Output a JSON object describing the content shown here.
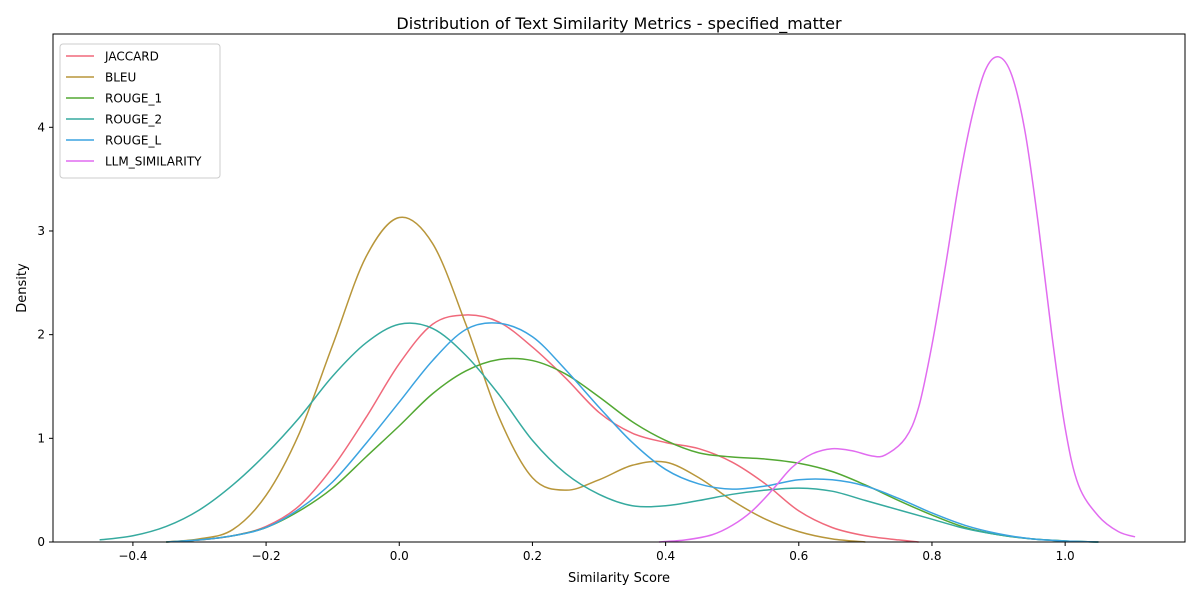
{
  "chart_data": {
    "type": "line",
    "title": "Distribution of Text Similarity Metrics - specified_matter",
    "xlabel": "Similarity Score",
    "ylabel": "Density",
    "xlim": [
      -0.52,
      1.18
    ],
    "ylim": [
      0,
      4.9
    ],
    "x_ticks": [
      -0.4,
      -0.2,
      0.0,
      0.2,
      0.4,
      0.6,
      0.8,
      1.0
    ],
    "x_tick_labels": [
      "−0.4",
      "−0.2",
      "0.0",
      "0.2",
      "0.4",
      "0.6",
      "0.8",
      "1.0"
    ],
    "y_ticks": [
      0,
      1,
      2,
      3,
      4
    ],
    "y_tick_labels": [
      "0",
      "1",
      "2",
      "3",
      "4"
    ],
    "grid": false,
    "legend_position": "top-left",
    "series": [
      {
        "name": "JACCARD",
        "color": "#f0697b",
        "points": [
          [
            -0.35,
            0.0
          ],
          [
            -0.3,
            0.02
          ],
          [
            -0.25,
            0.06
          ],
          [
            -0.2,
            0.15
          ],
          [
            -0.15,
            0.35
          ],
          [
            -0.1,
            0.72
          ],
          [
            -0.05,
            1.2
          ],
          [
            0.0,
            1.72
          ],
          [
            0.05,
            2.1
          ],
          [
            0.1,
            2.19
          ],
          [
            0.15,
            2.12
          ],
          [
            0.2,
            1.88
          ],
          [
            0.25,
            1.58
          ],
          [
            0.3,
            1.25
          ],
          [
            0.35,
            1.05
          ],
          [
            0.4,
            0.96
          ],
          [
            0.45,
            0.9
          ],
          [
            0.5,
            0.77
          ],
          [
            0.55,
            0.56
          ],
          [
            0.6,
            0.3
          ],
          [
            0.65,
            0.14
          ],
          [
            0.7,
            0.06
          ],
          [
            0.75,
            0.02
          ],
          [
            0.78,
            0.0
          ]
        ]
      },
      {
        "name": "BLEU",
        "color": "#b8963a",
        "points": [
          [
            -0.35,
            0.0
          ],
          [
            -0.3,
            0.03
          ],
          [
            -0.25,
            0.12
          ],
          [
            -0.2,
            0.45
          ],
          [
            -0.15,
            1.05
          ],
          [
            -0.1,
            1.9
          ],
          [
            -0.05,
            2.75
          ],
          [
            0.0,
            3.13
          ],
          [
            0.05,
            2.88
          ],
          [
            0.1,
            2.1
          ],
          [
            0.15,
            1.2
          ],
          [
            0.2,
            0.62
          ],
          [
            0.25,
            0.5
          ],
          [
            0.3,
            0.6
          ],
          [
            0.35,
            0.74
          ],
          [
            0.4,
            0.77
          ],
          [
            0.45,
            0.62
          ],
          [
            0.5,
            0.4
          ],
          [
            0.55,
            0.22
          ],
          [
            0.6,
            0.1
          ],
          [
            0.65,
            0.03
          ],
          [
            0.7,
            0.0
          ]
        ]
      },
      {
        "name": "ROUGE_1",
        "color": "#53a833",
        "points": [
          [
            -0.35,
            0.0
          ],
          [
            -0.3,
            0.02
          ],
          [
            -0.25,
            0.06
          ],
          [
            -0.2,
            0.14
          ],
          [
            -0.15,
            0.3
          ],
          [
            -0.1,
            0.52
          ],
          [
            -0.05,
            0.82
          ],
          [
            0.0,
            1.12
          ],
          [
            0.05,
            1.43
          ],
          [
            0.1,
            1.65
          ],
          [
            0.15,
            1.76
          ],
          [
            0.2,
            1.75
          ],
          [
            0.25,
            1.62
          ],
          [
            0.3,
            1.4
          ],
          [
            0.35,
            1.16
          ],
          [
            0.4,
            0.98
          ],
          [
            0.45,
            0.86
          ],
          [
            0.5,
            0.82
          ],
          [
            0.55,
            0.8
          ],
          [
            0.6,
            0.76
          ],
          [
            0.65,
            0.68
          ],
          [
            0.7,
            0.55
          ],
          [
            0.75,
            0.4
          ],
          [
            0.8,
            0.26
          ],
          [
            0.85,
            0.14
          ],
          [
            0.9,
            0.07
          ],
          [
            0.95,
            0.03
          ],
          [
            1.0,
            0.01
          ],
          [
            1.05,
            0.0
          ]
        ]
      },
      {
        "name": "ROUGE_2",
        "color": "#36aa9f",
        "points": [
          [
            -0.45,
            0.02
          ],
          [
            -0.4,
            0.06
          ],
          [
            -0.35,
            0.15
          ],
          [
            -0.3,
            0.31
          ],
          [
            -0.25,
            0.55
          ],
          [
            -0.2,
            0.85
          ],
          [
            -0.15,
            1.2
          ],
          [
            -0.1,
            1.6
          ],
          [
            -0.05,
            1.92
          ],
          [
            0.0,
            2.1
          ],
          [
            0.05,
            2.06
          ],
          [
            0.1,
            1.8
          ],
          [
            0.15,
            1.42
          ],
          [
            0.2,
            0.98
          ],
          [
            0.25,
            0.66
          ],
          [
            0.3,
            0.46
          ],
          [
            0.35,
            0.35
          ],
          [
            0.4,
            0.35
          ],
          [
            0.45,
            0.4
          ],
          [
            0.5,
            0.46
          ],
          [
            0.55,
            0.5
          ],
          [
            0.6,
            0.52
          ],
          [
            0.65,
            0.49
          ],
          [
            0.7,
            0.4
          ],
          [
            0.75,
            0.31
          ],
          [
            0.8,
            0.22
          ],
          [
            0.85,
            0.13
          ],
          [
            0.9,
            0.07
          ],
          [
            0.95,
            0.03
          ],
          [
            1.0,
            0.01
          ],
          [
            1.05,
            0.0
          ]
        ]
      },
      {
        "name": "ROUGE_L",
        "color": "#3ba3e0",
        "points": [
          [
            -0.35,
            0.0
          ],
          [
            -0.3,
            0.02
          ],
          [
            -0.25,
            0.06
          ],
          [
            -0.2,
            0.14
          ],
          [
            -0.15,
            0.32
          ],
          [
            -0.1,
            0.58
          ],
          [
            -0.05,
            0.95
          ],
          [
            0.0,
            1.35
          ],
          [
            0.05,
            1.75
          ],
          [
            0.1,
            2.05
          ],
          [
            0.15,
            2.11
          ],
          [
            0.2,
            1.98
          ],
          [
            0.25,
            1.66
          ],
          [
            0.3,
            1.3
          ],
          [
            0.35,
            0.96
          ],
          [
            0.4,
            0.7
          ],
          [
            0.45,
            0.56
          ],
          [
            0.5,
            0.51
          ],
          [
            0.55,
            0.54
          ],
          [
            0.6,
            0.6
          ],
          [
            0.65,
            0.6
          ],
          [
            0.7,
            0.54
          ],
          [
            0.75,
            0.42
          ],
          [
            0.8,
            0.28
          ],
          [
            0.85,
            0.16
          ],
          [
            0.9,
            0.08
          ],
          [
            0.95,
            0.03
          ],
          [
            1.0,
            0.01
          ],
          [
            1.05,
            0.0
          ]
        ]
      },
      {
        "name": "LLM_SIMILARITY",
        "color": "#e16cf0",
        "points": [
          [
            0.39,
            0.0
          ],
          [
            0.43,
            0.02
          ],
          [
            0.47,
            0.07
          ],
          [
            0.5,
            0.16
          ],
          [
            0.53,
            0.3
          ],
          [
            0.56,
            0.5
          ],
          [
            0.59,
            0.72
          ],
          [
            0.62,
            0.85
          ],
          [
            0.65,
            0.9
          ],
          [
            0.68,
            0.88
          ],
          [
            0.71,
            0.83
          ],
          [
            0.73,
            0.84
          ],
          [
            0.76,
            1.0
          ],
          [
            0.78,
            1.3
          ],
          [
            0.8,
            1.9
          ],
          [
            0.82,
            2.65
          ],
          [
            0.84,
            3.45
          ],
          [
            0.86,
            4.1
          ],
          [
            0.88,
            4.55
          ],
          [
            0.9,
            4.68
          ],
          [
            0.92,
            4.5
          ],
          [
            0.94,
            3.95
          ],
          [
            0.96,
            3.05
          ],
          [
            0.98,
            2.0
          ],
          [
            1.0,
            1.1
          ],
          [
            1.02,
            0.55
          ],
          [
            1.05,
            0.25
          ],
          [
            1.08,
            0.1
          ],
          [
            1.105,
            0.05
          ]
        ]
      }
    ]
  }
}
